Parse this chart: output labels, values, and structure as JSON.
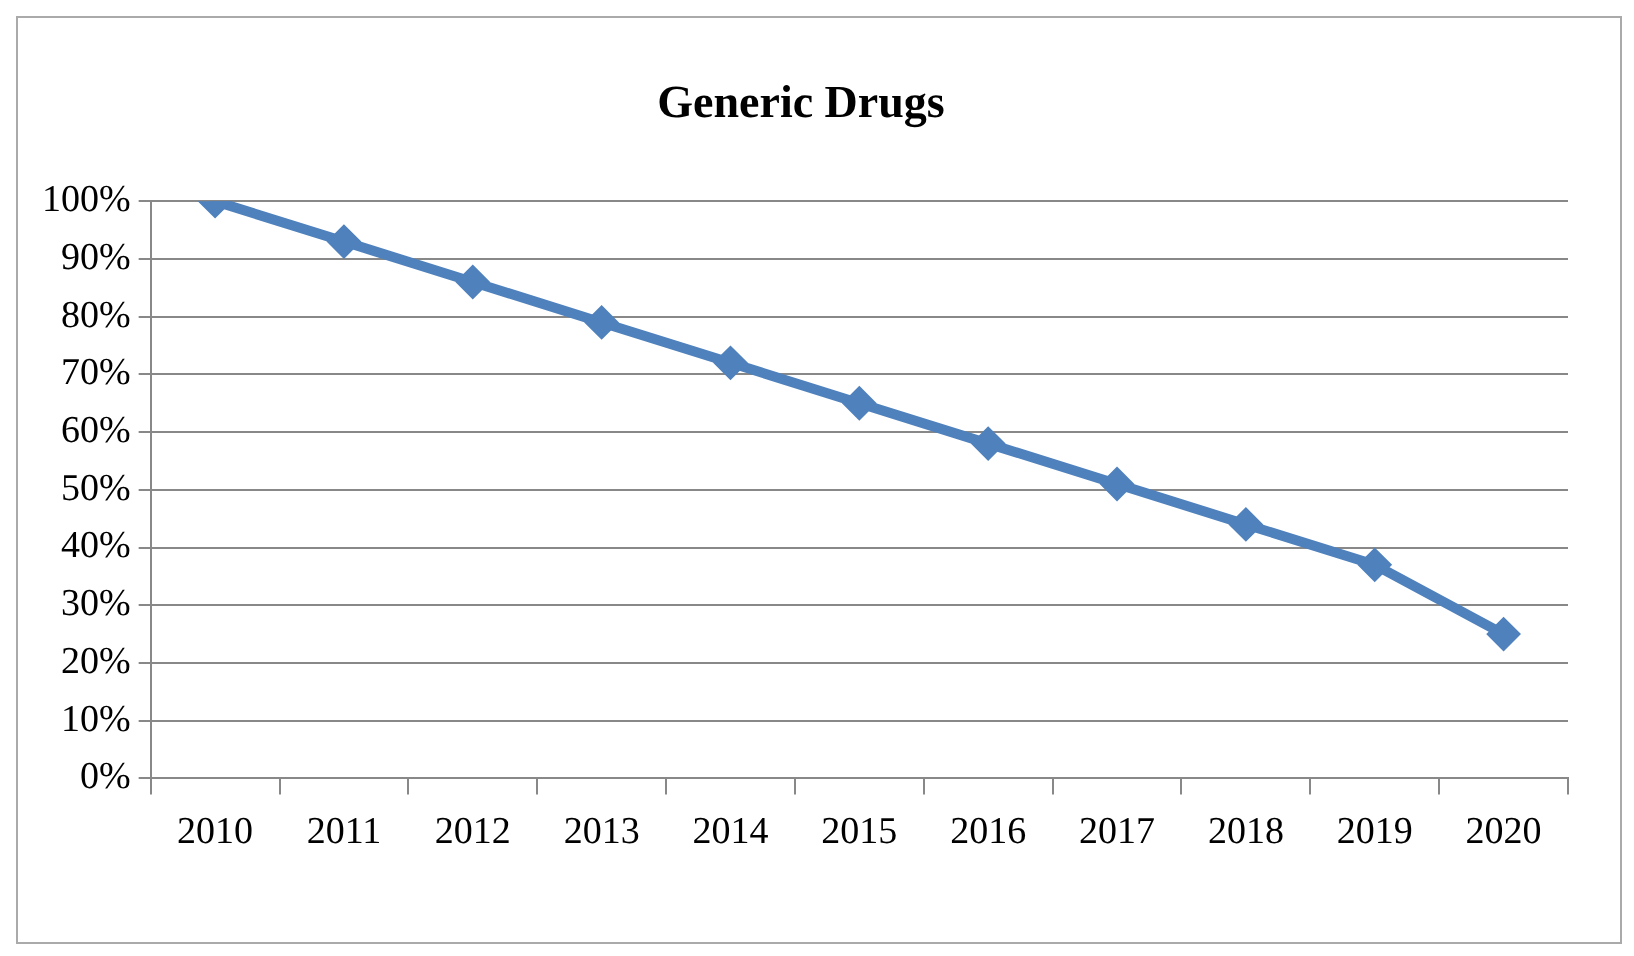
{
  "chart_data": {
    "type": "line",
    "title": "Generic Drugs",
    "categories": [
      "2010",
      "2011",
      "2012",
      "2013",
      "2014",
      "2015",
      "2016",
      "2017",
      "2018",
      "2019",
      "2020"
    ],
    "series": [
      {
        "color": "#4f81bd",
        "values": [
          100,
          93,
          86,
          79,
          72,
          65,
          58,
          51,
          44,
          37,
          25
        ]
      }
    ],
    "ylim": [
      0,
      100
    ],
    "yticks": [
      {
        "value": 0,
        "label": "0%"
      },
      {
        "value": 10,
        "label": "10%"
      },
      {
        "value": 20,
        "label": "20%"
      },
      {
        "value": 30,
        "label": "30%"
      },
      {
        "value": 40,
        "label": "40%"
      },
      {
        "value": 50,
        "label": "50%"
      },
      {
        "value": 60,
        "label": "60%"
      },
      {
        "value": 70,
        "label": "70%"
      },
      {
        "value": 80,
        "label": "80%"
      },
      {
        "value": 90,
        "label": "90%"
      },
      {
        "value": 100,
        "label": "100%"
      }
    ],
    "grid": "y",
    "legend": false,
    "marker": "diamond",
    "line_style": "solid"
  }
}
